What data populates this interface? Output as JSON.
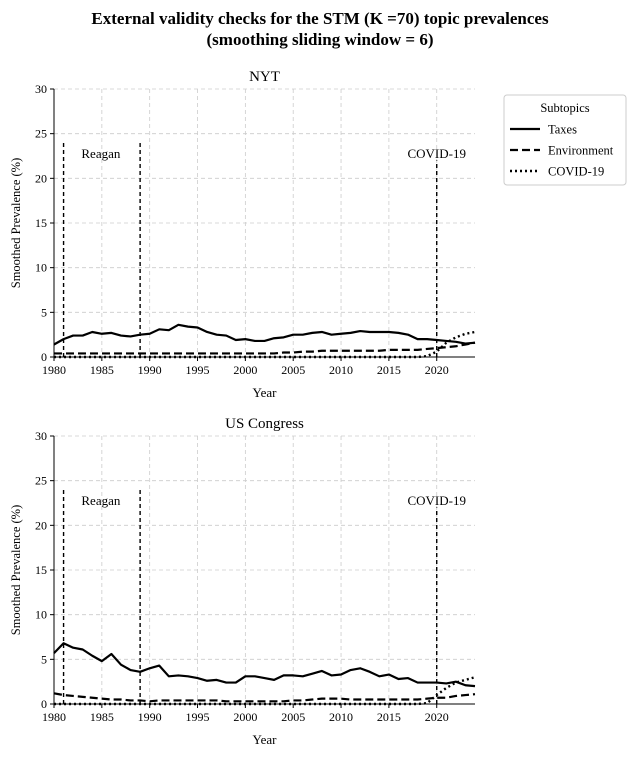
{
  "figure": {
    "suptitle_line1": "External validity checks for the STM (K =70) topic prevalences",
    "suptitle_line2": "(smoothing sliding window = 6)"
  },
  "legend": {
    "title": "Subtopics",
    "placement": "right of top panel",
    "entries": [
      {
        "label": "Taxes",
        "style": "solid"
      },
      {
        "label": "Environment",
        "style": "dashed"
      },
      {
        "label": "COVID-19",
        "style": "dotted"
      }
    ]
  },
  "chart_data": [
    {
      "type": "line",
      "title": "NYT",
      "xlabel": "Year",
      "ylabel": "Smoothed Prevalence (%)",
      "xlim": [
        1980,
        2024
      ],
      "ylim": [
        0,
        30
      ],
      "xticks": [
        "1980",
        "1985",
        "1990",
        "1995",
        "2000",
        "2005",
        "2010",
        "2015",
        "2020"
      ],
      "yticks": [
        "0",
        "5",
        "10",
        "15",
        "20",
        "25",
        "30"
      ],
      "grid": true,
      "vlines": [
        {
          "x": 1981,
          "ymax": 24
        },
        {
          "x": 1989,
          "ymax": 24
        },
        {
          "x": 2020,
          "ymax": 22
        }
      ],
      "annotations": [
        {
          "text": "Reagan",
          "x": 1984.9,
          "y": 22.3
        },
        {
          "text": "COVID-19",
          "x": 2020,
          "y": 22.3
        }
      ],
      "x": [
        1980,
        1981,
        1982,
        1983,
        1984,
        1985,
        1986,
        1987,
        1988,
        1989,
        1990,
        1991,
        1992,
        1993,
        1994,
        1995,
        1996,
        1997,
        1998,
        1999,
        2000,
        2001,
        2002,
        2003,
        2004,
        2005,
        2006,
        2007,
        2008,
        2009,
        2010,
        2011,
        2012,
        2013,
        2014,
        2015,
        2016,
        2017,
        2018,
        2019,
        2020,
        2021,
        2022,
        2023,
        2024
      ],
      "series": [
        {
          "name": "Taxes",
          "style": "solid",
          "values": [
            1.4,
            2.0,
            2.4,
            2.4,
            2.8,
            2.6,
            2.7,
            2.4,
            2.3,
            2.5,
            2.6,
            3.1,
            3.0,
            3.6,
            3.4,
            3.3,
            2.8,
            2.5,
            2.4,
            1.9,
            2.0,
            1.8,
            1.8,
            2.1,
            2.2,
            2.5,
            2.5,
            2.7,
            2.8,
            2.5,
            2.6,
            2.7,
            2.9,
            2.8,
            2.8,
            2.8,
            2.7,
            2.5,
            2.0,
            2.0,
            1.9,
            1.8,
            1.7,
            1.5,
            1.6
          ]
        },
        {
          "name": "Environment",
          "style": "dashed",
          "values": [
            0.4,
            0.4,
            0.4,
            0.4,
            0.4,
            0.4,
            0.4,
            0.4,
            0.4,
            0.4,
            0.4,
            0.4,
            0.4,
            0.4,
            0.4,
            0.4,
            0.4,
            0.4,
            0.4,
            0.4,
            0.4,
            0.4,
            0.4,
            0.4,
            0.5,
            0.5,
            0.6,
            0.6,
            0.7,
            0.7,
            0.7,
            0.7,
            0.7,
            0.7,
            0.7,
            0.8,
            0.8,
            0.8,
            0.8,
            0.9,
            1.0,
            1.1,
            1.2,
            1.4,
            1.6
          ]
        },
        {
          "name": "COVID-19",
          "style": "dotted",
          "values": [
            0,
            0,
            0,
            0,
            0,
            0,
            0,
            0,
            0,
            0,
            0,
            0,
            0,
            0,
            0,
            0,
            0,
            0,
            0,
            0,
            0,
            0,
            0,
            0,
            0,
            0,
            0,
            0,
            0,
            0,
            0,
            0,
            0,
            0,
            0,
            0,
            0,
            0,
            0,
            0.1,
            0.6,
            1.6,
            2.2,
            2.6,
            2.8
          ]
        }
      ]
    },
    {
      "type": "line",
      "title": "US Congress",
      "xlabel": "Year",
      "ylabel": "Smoothed Prevalence (%)",
      "xlim": [
        1980,
        2024
      ],
      "ylim": [
        0,
        30
      ],
      "xticks": [
        "1980",
        "1985",
        "1990",
        "1995",
        "2000",
        "2005",
        "2010",
        "2015",
        "2020"
      ],
      "yticks": [
        "0",
        "5",
        "10",
        "15",
        "20",
        "25",
        "30"
      ],
      "grid": true,
      "vlines": [
        {
          "x": 1981,
          "ymax": 24
        },
        {
          "x": 1989,
          "ymax": 24
        },
        {
          "x": 2020,
          "ymax": 22
        }
      ],
      "annotations": [
        {
          "text": "Reagan",
          "x": 1984.9,
          "y": 22.3
        },
        {
          "text": "COVID-19",
          "x": 2020,
          "y": 22.3
        }
      ],
      "x": [
        1980,
        1981,
        1982,
        1983,
        1984,
        1985,
        1986,
        1987,
        1988,
        1989,
        1990,
        1991,
        1992,
        1993,
        1994,
        1995,
        1996,
        1997,
        1998,
        1999,
        2000,
        2001,
        2002,
        2003,
        2004,
        2005,
        2006,
        2007,
        2008,
        2009,
        2010,
        2011,
        2012,
        2013,
        2014,
        2015,
        2016,
        2017,
        2018,
        2019,
        2020,
        2021,
        2022,
        2023,
        2024
      ],
      "series": [
        {
          "name": "Taxes",
          "style": "solid",
          "values": [
            5.7,
            6.8,
            6.3,
            6.1,
            5.4,
            4.8,
            5.6,
            4.4,
            3.8,
            3.6,
            4.0,
            4.3,
            3.1,
            3.2,
            3.1,
            2.9,
            2.6,
            2.7,
            2.4,
            2.4,
            3.1,
            3.1,
            2.9,
            2.7,
            3.2,
            3.2,
            3.1,
            3.4,
            3.7,
            3.2,
            3.3,
            3.8,
            4.0,
            3.6,
            3.1,
            3.3,
            2.8,
            2.9,
            2.4,
            2.4,
            2.4,
            2.3,
            2.5,
            2.1,
            2.0
          ]
        },
        {
          "name": "Environment",
          "style": "dashed",
          "values": [
            1.2,
            1.0,
            0.9,
            0.8,
            0.7,
            0.6,
            0.5,
            0.5,
            0.4,
            0.4,
            0.3,
            0.4,
            0.4,
            0.4,
            0.4,
            0.4,
            0.4,
            0.4,
            0.3,
            0.3,
            0.3,
            0.3,
            0.3,
            0.3,
            0.3,
            0.4,
            0.4,
            0.5,
            0.6,
            0.6,
            0.6,
            0.5,
            0.5,
            0.5,
            0.5,
            0.5,
            0.5,
            0.5,
            0.5,
            0.6,
            0.7,
            0.7,
            0.9,
            1.0,
            1.1
          ]
        },
        {
          "name": "COVID-19",
          "style": "dotted",
          "values": [
            0,
            0,
            0,
            0,
            0,
            0,
            0,
            0,
            0,
            0,
            0,
            0,
            0,
            0,
            0,
            0,
            0,
            0,
            0,
            0,
            0,
            0,
            0,
            0,
            0,
            0,
            0,
            0,
            0,
            0,
            0,
            0,
            0,
            0,
            0,
            0,
            0,
            0,
            0,
            0.1,
            1.0,
            1.8,
            2.4,
            2.7,
            3.0
          ]
        }
      ]
    }
  ]
}
